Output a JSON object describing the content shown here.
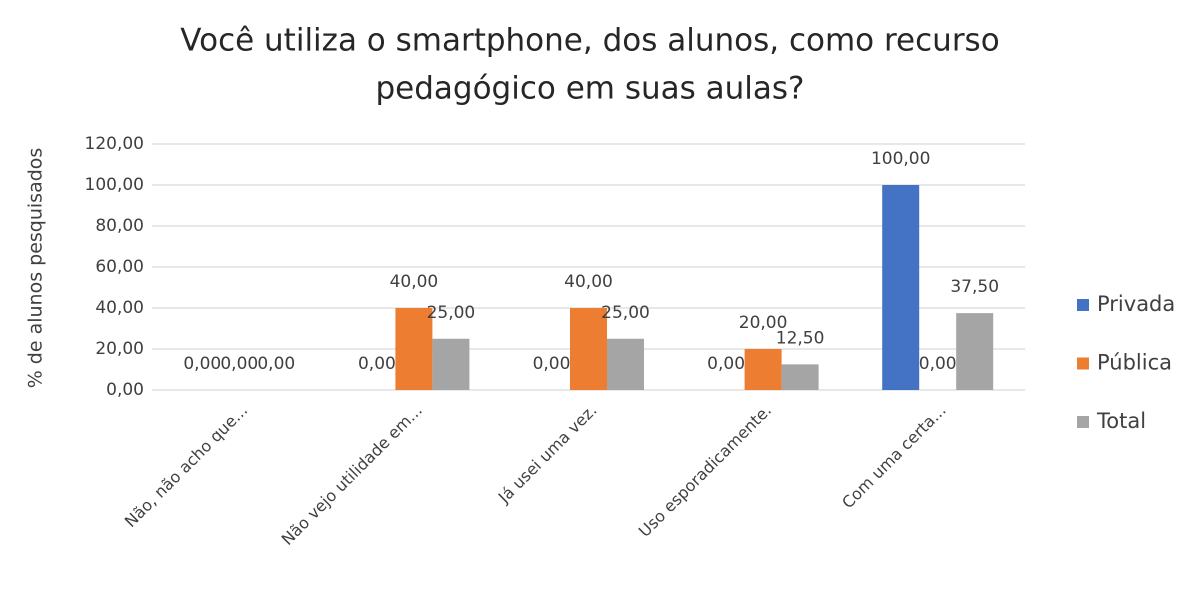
{
  "chart_data": {
    "type": "bar",
    "title": [
      "Você utiliza o smartphone, dos alunos, como recurso",
      "pedagógico em suas aulas?"
    ],
    "y_label": "% de alunos pesquisados",
    "categories": [
      "Não, não acho que...",
      "Não vejo utilidade em...",
      "Já usei uma vez.",
      "Uso esporadicamente.",
      "Com uma certa..."
    ],
    "series": [
      {
        "name": "Privada",
        "color": "#4472c4",
        "values": [
          0,
          0,
          0,
          0,
          100
        ],
        "value_labels": [
          "0,00",
          "0,00",
          "0,00",
          "0,00",
          "100,00"
        ]
      },
      {
        "name": "Pública",
        "color": "#ed7d31",
        "values": [
          0,
          40,
          40,
          20,
          0
        ],
        "value_labels": [
          "0,00",
          "40,00",
          "40,00",
          "20,00",
          "0,00"
        ]
      },
      {
        "name": "Total",
        "color": "#a5a5a5",
        "values": [
          0,
          25,
          25,
          12.5,
          37.5
        ],
        "value_labels": [
          "0,00",
          "25,00",
          "25,00",
          "12,50",
          "37,50"
        ]
      }
    ],
    "ylim": [
      0,
      120
    ],
    "yticks": [
      {
        "value": 0,
        "label": "0,00"
      },
      {
        "value": 20,
        "label": "20,00"
      },
      {
        "value": 40,
        "label": "40,00"
      },
      {
        "value": 60,
        "label": "60,00"
      },
      {
        "value": 80,
        "label": "80,00"
      },
      {
        "value": 100,
        "label": "100,00"
      },
      {
        "value": 120,
        "label": "120,00"
      }
    ],
    "grid": true,
    "legend": "right"
  }
}
